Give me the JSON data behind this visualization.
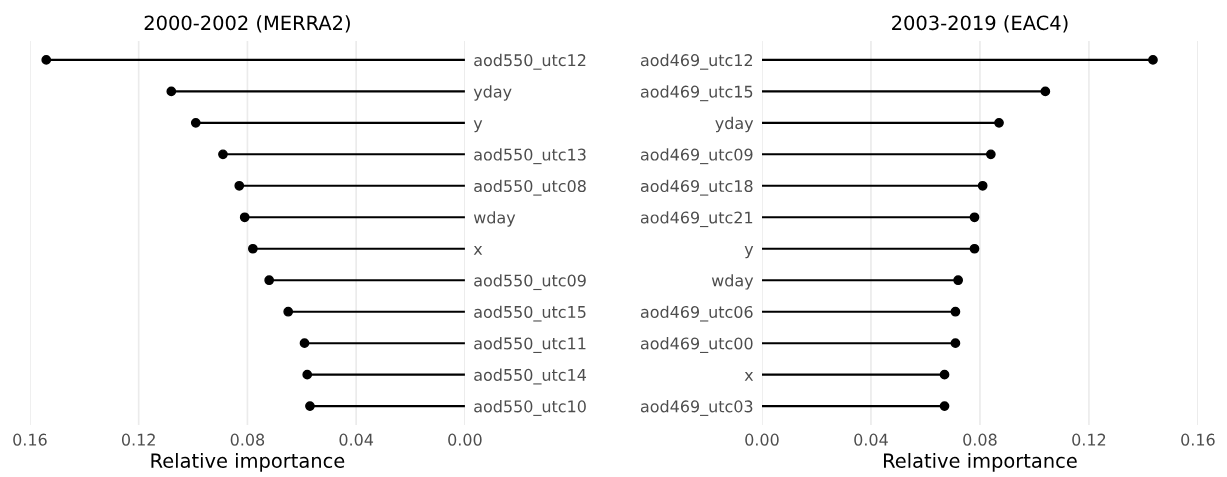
{
  "chart_data": [
    {
      "type": "lollipop",
      "orientation": "horizontal",
      "title": "2000-2002 (MERRA2)",
      "xlabel": "Relative importance",
      "categories": [
        "aod550_utc12",
        "yday",
        "y",
        "aod550_utc13",
        "aod550_utc08",
        "wday",
        "x",
        "aod550_utc09",
        "aod550_utc15",
        "aod550_utc11",
        "aod550_utc14",
        "aod550_utc10"
      ],
      "series": [
        {
          "color": "#000000",
          "values": [
            0.154,
            0.108,
            0.099,
            0.089,
            0.083,
            0.081,
            0.078,
            0.072,
            0.065,
            0.059,
            0.058,
            0.057
          ]
        }
      ],
      "xlim": [
        0.16,
        0.0
      ],
      "xticks": [
        {
          "value": 0.16,
          "label": "0.16"
        },
        {
          "value": 0.12,
          "label": "0.12"
        },
        {
          "value": 0.08,
          "label": "0.08"
        },
        {
          "value": 0.04,
          "label": "0.04"
        },
        {
          "value": 0.0,
          "label": "0.00"
        }
      ],
      "grid": "x",
      "marker": "circle",
      "legend": false
    },
    {
      "type": "lollipop",
      "orientation": "horizontal",
      "title": "2003-2019 (EAC4)",
      "xlabel": "Relative importance",
      "categories": [
        "aod469_utc12",
        "aod469_utc15",
        "yday",
        "aod469_utc09",
        "aod469_utc18",
        "aod469_utc21",
        "y",
        "wday",
        "aod469_utc06",
        "aod469_utc00",
        "x",
        "aod469_utc03"
      ],
      "series": [
        {
          "color": "#000000",
          "values": [
            0.1435,
            0.104,
            0.087,
            0.084,
            0.081,
            0.078,
            0.078,
            0.072,
            0.071,
            0.071,
            0.067,
            0.067
          ]
        }
      ],
      "xlim": [
        0.0,
        0.16
      ],
      "xticks": [
        {
          "value": 0.0,
          "label": "0.00"
        },
        {
          "value": 0.04,
          "label": "0.04"
        },
        {
          "value": 0.08,
          "label": "0.08"
        },
        {
          "value": 0.12,
          "label": "0.12"
        },
        {
          "value": 0.16,
          "label": "0.16"
        }
      ],
      "grid": "x",
      "marker": "circle",
      "legend": false
    }
  ]
}
